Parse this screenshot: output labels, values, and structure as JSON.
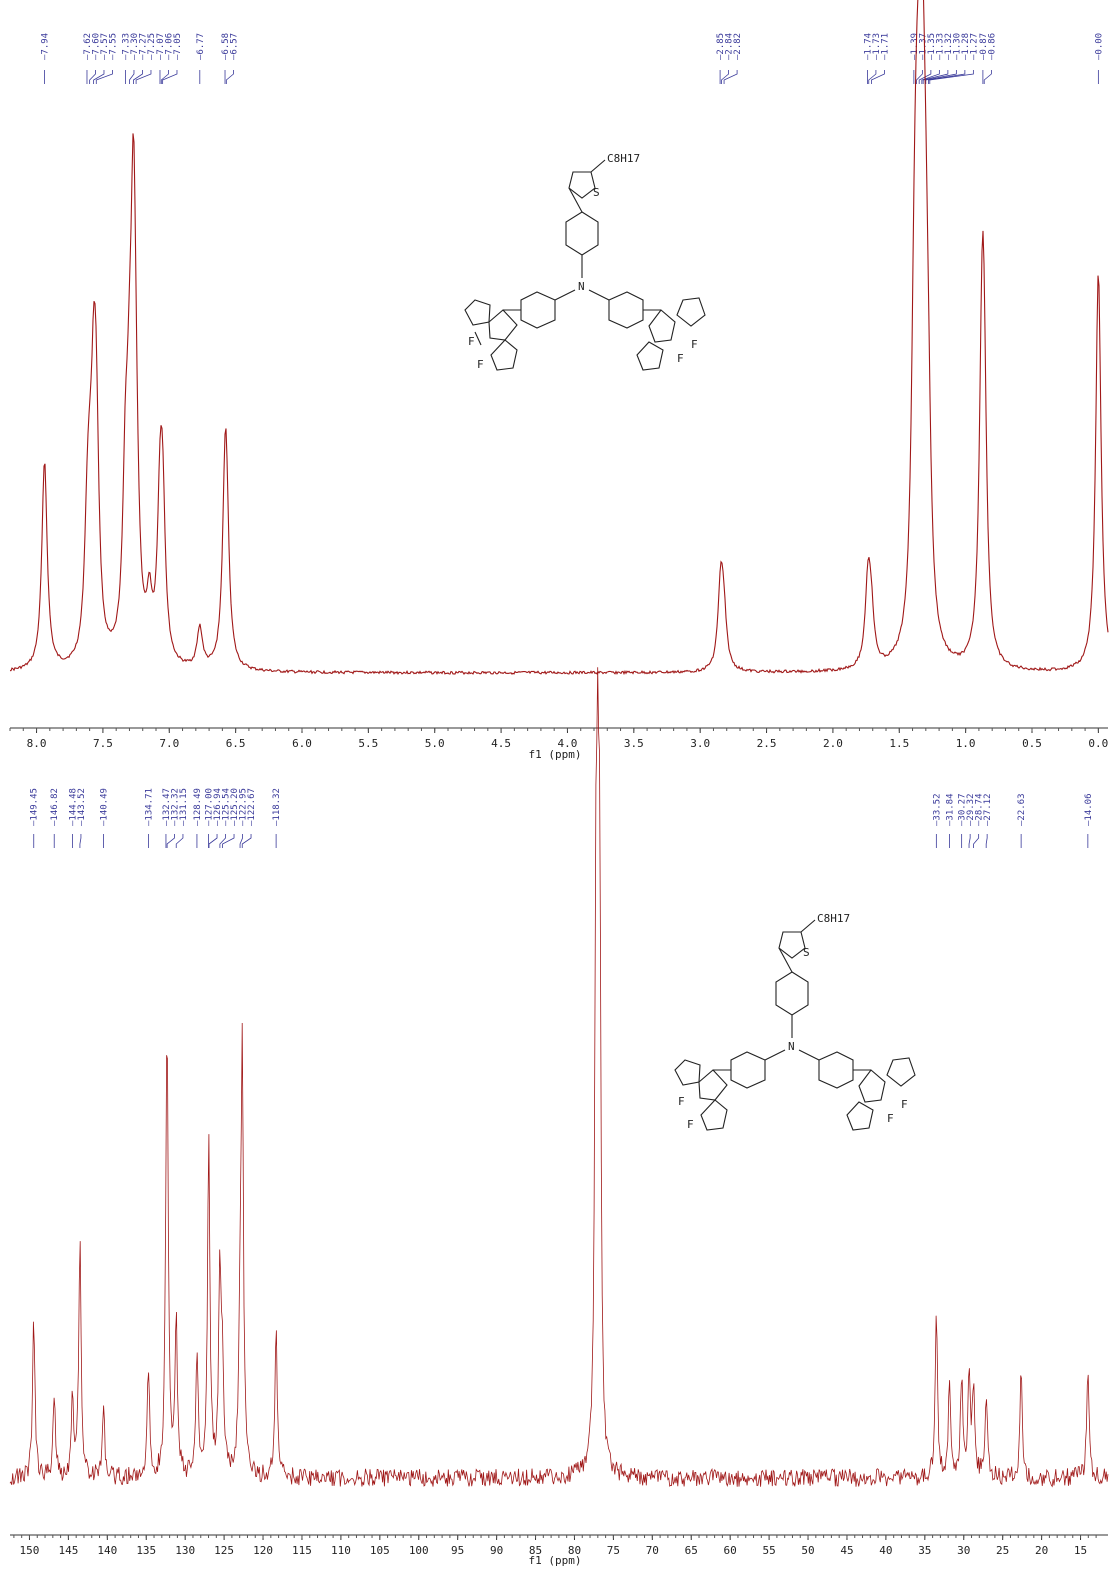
{
  "chart_data": [
    {
      "type": "line",
      "nucleus": "1H",
      "xlabel": "f1 (ppm)",
      "xlim": [
        8.2,
        -0.05
      ],
      "reversed_x": true,
      "x_ticks": [
        8.0,
        7.5,
        7.0,
        6.5,
        6.0,
        5.5,
        5.0,
        4.5,
        4.0,
        3.5,
        3.0,
        2.5,
        2.0,
        1.5,
        1.0,
        0.5,
        0.0
      ],
      "x_tick_labels": [
        "8.0",
        "7.5",
        "7.0",
        "6.5",
        "6.0",
        "5.5",
        "5.0",
        "4.5",
        "4.0",
        "3.5",
        "3.0",
        "2.5",
        "2.0",
        "1.5",
        "1.0",
        "0.5",
        "0.0"
      ],
      "peak_labels": [
        "7.94",
        "7.62",
        "7.60",
        "7.57",
        "7.55",
        "7.33",
        "7.30",
        "7.27",
        "7.25",
        "7.07",
        "7.06",
        "7.05",
        "6.77",
        "6.58",
        "6.57",
        "2.85",
        "2.84",
        "2.82",
        "1.74",
        "1.73",
        "1.71",
        "1.39",
        "1.37",
        "1.35",
        "1.33",
        "1.32",
        "1.30",
        "1.28",
        "1.27",
        "0.87",
        "0.86",
        "0.00"
      ],
      "peaks": [
        {
          "x": 7.94,
          "h": 0.52
        },
        {
          "x": 7.62,
          "h": 0.22
        },
        {
          "x": 7.6,
          "h": 0.25
        },
        {
          "x": 7.57,
          "h": 0.48
        },
        {
          "x": 7.55,
          "h": 0.46
        },
        {
          "x": 7.33,
          "h": 0.38
        },
        {
          "x": 7.3,
          "h": 0.36
        },
        {
          "x": 7.27,
          "h": 1.0
        },
        {
          "x": 7.25,
          "h": 0.22
        },
        {
          "x": 7.15,
          "h": 0.13
        },
        {
          "x": 7.07,
          "h": 0.33
        },
        {
          "x": 7.05,
          "h": 0.35
        },
        {
          "x": 6.77,
          "h": 0.1
        },
        {
          "x": 6.58,
          "h": 0.32
        },
        {
          "x": 6.57,
          "h": 0.31
        },
        {
          "x": 2.85,
          "h": 0.1
        },
        {
          "x": 2.84,
          "h": 0.13
        },
        {
          "x": 2.82,
          "h": 0.1
        },
        {
          "x": 1.74,
          "h": 0.1
        },
        {
          "x": 1.73,
          "h": 0.13
        },
        {
          "x": 1.71,
          "h": 0.1
        },
        {
          "x": 1.39,
          "h": 0.5
        },
        {
          "x": 1.37,
          "h": 0.62
        },
        {
          "x": 1.35,
          "h": 0.6
        },
        {
          "x": 1.33,
          "h": 0.52
        },
        {
          "x": 1.32,
          "h": 0.5
        },
        {
          "x": 1.3,
          "h": 0.48
        },
        {
          "x": 1.28,
          "h": 0.3
        },
        {
          "x": 0.88,
          "h": 0.4
        },
        {
          "x": 0.87,
          "h": 0.42
        },
        {
          "x": 0.86,
          "h": 0.38
        },
        {
          "x": 0.0,
          "h": 1.0
        }
      ],
      "structure_substituent": "C8H17"
    },
    {
      "type": "line",
      "nucleus": "13C",
      "xlabel": "f1 (ppm)",
      "xlim": [
        152.5,
        12.5
      ],
      "reversed_x": true,
      "x_ticks": [
        150,
        145,
        140,
        135,
        130,
        125,
        120,
        115,
        110,
        105,
        100,
        95,
        90,
        85,
        80,
        75,
        70,
        65,
        60,
        55,
        50,
        45,
        40,
        35,
        30,
        25,
        20,
        15
      ],
      "x_tick_labels": [
        "150",
        "145",
        "140",
        "135",
        "130",
        "125",
        "120",
        "115",
        "110",
        "105",
        "100",
        "95",
        "90",
        "85",
        "80",
        "75",
        "70",
        "65",
        "60",
        "55",
        "50",
        "45",
        "40",
        "35",
        "30",
        "25",
        "20",
        "15"
      ],
      "peak_labels": [
        "149.45",
        "146.82",
        "144.48",
        "143.52",
        "140.49",
        "134.71",
        "132.47",
        "132.32",
        "131.15",
        "128.49",
        "127.00",
        "126.94",
        "125.54",
        "125.20",
        "122.95",
        "122.67",
        "118.32",
        "33.52",
        "31.84",
        "30.27",
        "29.32",
        "28.74",
        "27.12",
        "22.63",
        "14.06"
      ],
      "peaks": [
        {
          "x": 149.45,
          "h": 0.34
        },
        {
          "x": 146.82,
          "h": 0.18
        },
        {
          "x": 144.48,
          "h": 0.18
        },
        {
          "x": 143.52,
          "h": 0.5
        },
        {
          "x": 140.49,
          "h": 0.15
        },
        {
          "x": 134.71,
          "h": 0.23
        },
        {
          "x": 132.47,
          "h": 0.12
        },
        {
          "x": 132.32,
          "h": 0.88
        },
        {
          "x": 131.15,
          "h": 0.32
        },
        {
          "x": 128.49,
          "h": 0.27
        },
        {
          "x": 127.0,
          "h": 0.42
        },
        {
          "x": 126.94,
          "h": 0.3
        },
        {
          "x": 125.54,
          "h": 0.44
        },
        {
          "x": 125.2,
          "h": 0.21
        },
        {
          "x": 122.95,
          "h": 0.28
        },
        {
          "x": 122.67,
          "h": 0.86
        },
        {
          "x": 118.32,
          "h": 0.3
        },
        {
          "x": 77.25,
          "h": 1.0
        },
        {
          "x": 77.0,
          "h": 1.0
        },
        {
          "x": 76.75,
          "h": 1.0
        },
        {
          "x": 33.52,
          "h": 0.33
        },
        {
          "x": 31.84,
          "h": 0.19
        },
        {
          "x": 30.27,
          "h": 0.21
        },
        {
          "x": 29.32,
          "h": 0.22
        },
        {
          "x": 28.74,
          "h": 0.19
        },
        {
          "x": 27.12,
          "h": 0.18
        },
        {
          "x": 22.63,
          "h": 0.24
        },
        {
          "x": 14.06,
          "h": 0.24
        }
      ],
      "structure_substituent": "C8H17"
    }
  ],
  "colors": {
    "spectrum": "#a01818",
    "label": "#3a3a9a",
    "axis": "#333333"
  }
}
